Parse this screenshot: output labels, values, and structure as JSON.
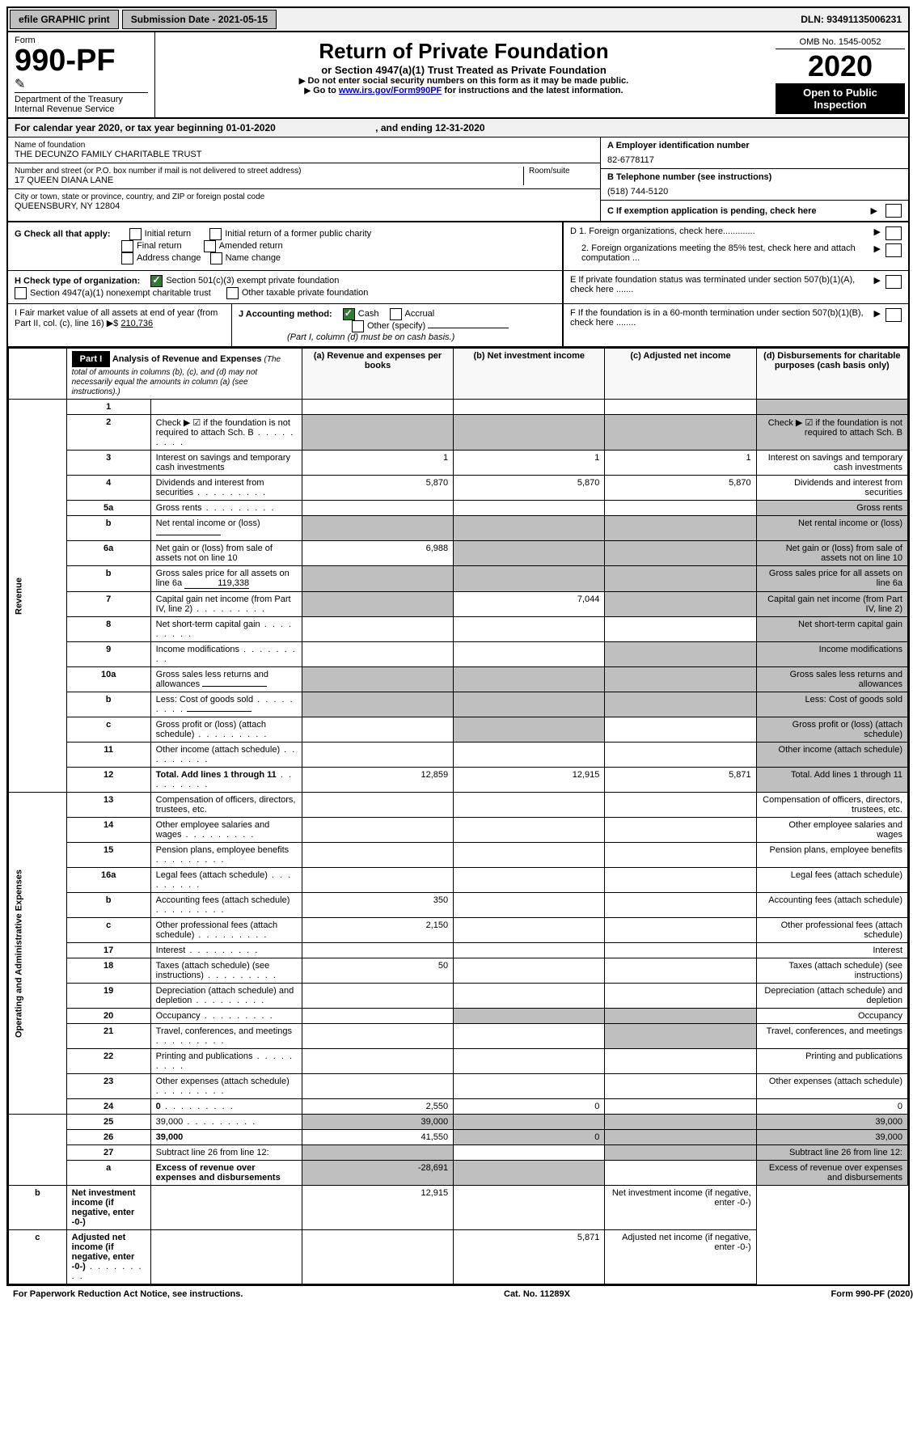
{
  "top": {
    "efile": "efile GRAPHIC print",
    "sub_label": "Submission Date - 2021-05-15",
    "dln": "DLN: 93491135006231"
  },
  "header": {
    "form_label": "Form",
    "form_no": "990-PF",
    "dept": "Department of the Treasury\nInternal Revenue Service",
    "title": "Return of Private Foundation",
    "subtitle": "or Section 4947(a)(1) Trust Treated as Private Foundation",
    "instr1": "Do not enter social security numbers on this form as it may be made public.",
    "instr2_pre": "Go to ",
    "instr2_link": "www.irs.gov/Form990PF",
    "instr2_post": " for instructions and the latest information.",
    "omb": "OMB No. 1545-0052",
    "year": "2020",
    "open": "Open to Public Inspection"
  },
  "cal": {
    "line_a": "For calendar year 2020, or tax year beginning 01-01-2020",
    "line_b": ", and ending 12-31-2020"
  },
  "info": {
    "name_label": "Name of foundation",
    "name": "THE DECUNZO FAMILY CHARITABLE TRUST",
    "addr_label": "Number and street (or P.O. box number if mail is not delivered to street address)",
    "room_label": "Room/suite",
    "addr": "17 QUEEN DIANA LANE",
    "city_label": "City or town, state or province, country, and ZIP or foreign postal code",
    "city": "QUEENSBURY, NY  12804",
    "a_label": "A Employer identification number",
    "a_val": "82-6778117",
    "b_label": "B Telephone number (see instructions)",
    "b_val": "(518) 744-5120",
    "c_label": "C If exemption application is pending, check here",
    "d1": "D 1. Foreign organizations, check here.............",
    "d2": "2. Foreign organizations meeting the 85% test, check here and attach computation ...",
    "e": "E  If private foundation status was terminated under section 507(b)(1)(A), check here .......",
    "f": "F  If the foundation is in a 60-month termination under section 507(b)(1)(B), check here ........"
  },
  "g": {
    "label": "G Check all that apply:",
    "opts": [
      "Initial return",
      "Initial return of a former public charity",
      "Final return",
      "Amended return",
      "Address change",
      "Name change"
    ]
  },
  "h": {
    "label": "H Check type of organization:",
    "o1": "Section 501(c)(3) exempt private foundation",
    "o2": "Section 4947(a)(1) nonexempt charitable trust",
    "o3": "Other taxable private foundation"
  },
  "i": {
    "label": "I Fair market value of all assets at end of year (from Part II, col. (c), line 16)",
    "arrow": "▶$",
    "val": "210,736"
  },
  "j": {
    "label": "J Accounting method:",
    "cash": "Cash",
    "accrual": "Accrual",
    "other": "Other (specify)",
    "note": "(Part I, column (d) must be on cash basis.)"
  },
  "part1": {
    "label": "Part I",
    "title": "Analysis of Revenue and Expenses",
    "note": "(The total of amounts in columns (b), (c), and (d) may not necessarily equal the amounts in column (a) (see instructions).)",
    "cols": {
      "a": "(a)   Revenue and expenses per books",
      "b": "(b)  Net investment income",
      "c": "(c)  Adjusted net income",
      "d": "(d)  Disbursements for charitable purposes (cash basis only)"
    }
  },
  "vert": {
    "rev": "Revenue",
    "oae": "Operating and Administrative Expenses"
  },
  "rows": [
    {
      "n": "1",
      "d": "",
      "a": "",
      "b": "",
      "c": ""
    },
    {
      "n": "2",
      "d": "Check ▶ ☑ if the foundation is not required to attach Sch. B",
      "dots": true
    },
    {
      "n": "3",
      "d": "Interest on savings and temporary cash investments",
      "a": "1",
      "b": "1",
      "c": "1"
    },
    {
      "n": "4",
      "d": "Dividends and interest from securities",
      "dots": true,
      "a": "5,870",
      "b": "5,870",
      "c": "5,870"
    },
    {
      "n": "5a",
      "d": "Gross rents",
      "dots": true
    },
    {
      "n": "b",
      "d": "Net rental income or (loss)",
      "fill": true
    },
    {
      "n": "6a",
      "d": "Net gain or (loss) from sale of assets not on line 10",
      "a": "6,988"
    },
    {
      "n": "b",
      "d": "Gross sales price for all assets on line 6a",
      "fill": true,
      "fillval": "119,338"
    },
    {
      "n": "7",
      "d": "Capital gain net income (from Part IV, line 2)",
      "dots": true,
      "b": "7,044"
    },
    {
      "n": "8",
      "d": "Net short-term capital gain",
      "dots": true
    },
    {
      "n": "9",
      "d": "Income modifications",
      "dots": true
    },
    {
      "n": "10a",
      "d": "Gross sales less returns and allowances",
      "fill": true
    },
    {
      "n": "b",
      "d": "Less: Cost of goods sold",
      "dots": true,
      "fill": true
    },
    {
      "n": "c",
      "d": "Gross profit or (loss) (attach schedule)",
      "dots": true
    },
    {
      "n": "11",
      "d": "Other income (attach schedule)",
      "dots": true
    },
    {
      "n": "12",
      "d": "Total. Add lines 1 through 11",
      "dots": true,
      "bold": true,
      "a": "12,859",
      "b": "12,915",
      "c": "5,871"
    },
    {
      "n": "13",
      "d": "Compensation of officers, directors, trustees, etc."
    },
    {
      "n": "14",
      "d": "Other employee salaries and wages",
      "dots": true
    },
    {
      "n": "15",
      "d": "Pension plans, employee benefits",
      "dots": true
    },
    {
      "n": "16a",
      "d": "Legal fees (attach schedule)",
      "dots": true
    },
    {
      "n": "b",
      "d": "Accounting fees (attach schedule)",
      "dots": true,
      "a": "350"
    },
    {
      "n": "c",
      "d": "Other professional fees (attach schedule)",
      "dots": true,
      "a": "2,150"
    },
    {
      "n": "17",
      "d": "Interest",
      "dots": true
    },
    {
      "n": "18",
      "d": "Taxes (attach schedule) (see instructions)",
      "dots": true,
      "a": "50"
    },
    {
      "n": "19",
      "d": "Depreciation (attach schedule) and depletion",
      "dots": true
    },
    {
      "n": "20",
      "d": "Occupancy",
      "dots": true
    },
    {
      "n": "21",
      "d": "Travel, conferences, and meetings",
      "dots": true
    },
    {
      "n": "22",
      "d": "Printing and publications",
      "dots": true
    },
    {
      "n": "23",
      "d": "Other expenses (attach schedule)",
      "dots": true
    },
    {
      "n": "24",
      "d": "0",
      "dots": true,
      "bold": true,
      "a": "2,550",
      "b": "0"
    },
    {
      "n": "25",
      "d": "39,000",
      "dots": true,
      "a": "39,000"
    },
    {
      "n": "26",
      "d": "39,000",
      "bold": true,
      "a": "41,550",
      "b": "0"
    },
    {
      "n": "27",
      "d": "Subtract line 26 from line 12:"
    },
    {
      "n": "a",
      "d": "Excess of revenue over expenses and disbursements",
      "bold": true,
      "a": "-28,691"
    },
    {
      "n": "b",
      "d": "Net investment income (if negative, enter -0-)",
      "bold": true,
      "b": "12,915"
    },
    {
      "n": "c",
      "d": "Adjusted net income (if negative, enter -0-)",
      "dots": true,
      "bold": true,
      "c": "5,871"
    }
  ],
  "footer": {
    "l": "For Paperwork Reduction Act Notice, see instructions.",
    "m": "Cat. No. 11289X",
    "r": "Form 990-PF (2020)"
  },
  "colors": {
    "shade": "#bfbfbf",
    "green": "#2e7d32",
    "link": "#0000cc"
  }
}
